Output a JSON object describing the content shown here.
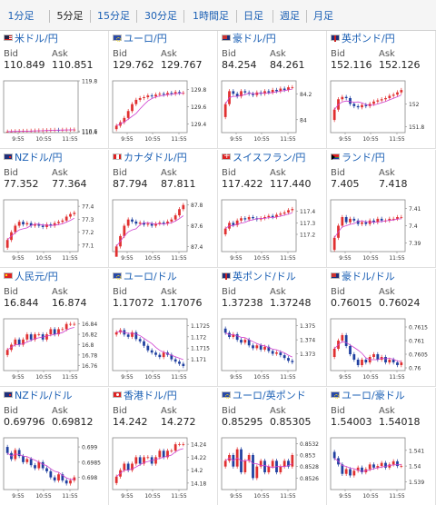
{
  "tabs": [
    {
      "label": "1分足",
      "name": "tab-1min"
    },
    {
      "label": "5分足",
      "name": "tab-5min",
      "selected": true
    },
    {
      "label": "15分足",
      "name": "tab-15min"
    },
    {
      "label": "30分足",
      "name": "tab-30min"
    },
    {
      "label": "1時間足",
      "name": "tab-1hour"
    },
    {
      "label": "日足",
      "name": "tab-daily"
    },
    {
      "label": "週足",
      "name": "tab-weekly"
    },
    {
      "label": "月足",
      "name": "tab-monthly"
    }
  ],
  "labels": {
    "bid": "Bid",
    "ask": "Ask"
  },
  "x_ticks": [
    "9:55",
    "10:55",
    "11:55"
  ],
  "colors": {
    "up": "#e03030",
    "down": "#2040a0",
    "ma": "#d040d0",
    "link": "#1a5fb4"
  },
  "cards": [
    {
      "title": "米ドル/円",
      "flag": "us",
      "bid": "110.849",
      "ask": "110.851",
      "chart_data": {
        "type": "candlestick",
        "ylim": [
          110.3,
          119.8
        ],
        "yticks": [
          "119.8",
          "110.6",
          "110.4"
        ],
        "close": [
          110.48,
          110.52,
          110.55,
          110.58,
          110.6,
          110.62,
          110.64,
          110.66,
          110.7,
          110.72,
          110.74,
          110.77,
          110.8,
          110.79,
          110.81,
          110.83,
          110.84,
          110.85
        ]
      }
    },
    {
      "title": "ユーロ/円",
      "flag": "eu",
      "bid": "129.762",
      "ask": "129.767",
      "chart_data": {
        "type": "candlestick",
        "ylim": [
          129.3,
          129.9
        ],
        "yticks": [
          "129.8",
          "129.6",
          "129.4"
        ],
        "close": [
          129.38,
          129.42,
          129.47,
          129.55,
          129.63,
          129.68,
          129.7,
          129.71,
          129.73,
          129.72,
          129.74,
          129.75,
          129.74,
          129.76,
          129.75,
          129.77,
          129.76,
          129.76
        ]
      }
    },
    {
      "title": "豪ドル/円",
      "flag": "au",
      "bid": "84.254",
      "ask": "84.261",
      "chart_data": {
        "type": "candlestick",
        "ylim": [
          83.9,
          84.3
        ],
        "yticks": [
          "84.2",
          "84"
        ],
        "close": [
          84.12,
          84.22,
          84.2,
          84.18,
          84.22,
          84.21,
          84.2,
          84.19,
          84.21,
          84.2,
          84.22,
          84.21,
          84.23,
          84.22,
          84.24,
          84.23,
          84.25,
          84.25
        ]
      }
    },
    {
      "title": "英ポンド/円",
      "flag": "gb",
      "bid": "152.116",
      "ask": "152.126",
      "chart_data": {
        "type": "candlestick",
        "ylim": [
          151.75,
          152.2
        ],
        "yticks": [
          "152",
          "151.8"
        ],
        "close": [
          151.95,
          152.04,
          152.06,
          152.05,
          152.0,
          151.98,
          151.97,
          151.99,
          151.98,
          152.0,
          152.02,
          152.03,
          152.04,
          152.05,
          152.07,
          152.08,
          152.1,
          152.12
        ]
      }
    },
    {
      "title": "NZドル/円",
      "flag": "nz",
      "bid": "77.352",
      "ask": "77.364",
      "chart_data": {
        "type": "candlestick",
        "ylim": [
          77.05,
          77.45
        ],
        "yticks": [
          "77.4",
          "77.3",
          "77.2",
          "77.1"
        ],
        "close": [
          77.14,
          77.2,
          77.25,
          77.28,
          77.26,
          77.27,
          77.25,
          77.26,
          77.25,
          77.24,
          77.26,
          77.25,
          77.27,
          77.28,
          77.29,
          77.32,
          77.34,
          77.35
        ]
      }
    },
    {
      "title": "カナダドル/円",
      "flag": "ca",
      "bid": "87.794",
      "ask": "87.811",
      "chart_data": {
        "type": "candlestick",
        "ylim": [
          87.35,
          87.85
        ],
        "yticks": [
          "87.8",
          "87.6",
          "87.4"
        ],
        "close": [
          87.4,
          87.5,
          87.6,
          87.66,
          87.64,
          87.62,
          87.63,
          87.61,
          87.62,
          87.6,
          87.62,
          87.63,
          87.62,
          87.64,
          87.66,
          87.7,
          87.76,
          87.8
        ]
      }
    },
    {
      "title": "スイスフラン/円",
      "flag": "ch",
      "bid": "117.422",
      "ask": "117.440",
      "chart_data": {
        "type": "candlestick",
        "ylim": [
          117.05,
          117.5
        ],
        "yticks": [
          "117.4",
          "117.3",
          "117.2"
        ],
        "close": [
          117.25,
          117.3,
          117.28,
          117.32,
          117.34,
          117.33,
          117.35,
          117.34,
          117.33,
          117.34,
          117.35,
          117.36,
          117.35,
          117.37,
          117.38,
          117.39,
          117.41,
          117.42
        ]
      }
    },
    {
      "title": "ランド/円",
      "flag": "za",
      "bid": "7.405",
      "ask": "7.418",
      "chart_data": {
        "type": "candlestick",
        "ylim": [
          7.385,
          7.415
        ],
        "yticks": [
          "7.41",
          "7.4",
          "7.39"
        ],
        "close": [
          7.393,
          7.4,
          7.405,
          7.402,
          7.404,
          7.403,
          7.401,
          7.402,
          7.401,
          7.403,
          7.402,
          7.404,
          7.403,
          7.403,
          7.404,
          7.404,
          7.405,
          7.405
        ]
      }
    },
    {
      "title": "人民元/円",
      "flag": "cn",
      "bid": "16.844",
      "ask": "16.874",
      "chart_data": {
        "type": "candlestick",
        "ylim": [
          16.75,
          16.85
        ],
        "yticks": [
          "16.84",
          "16.82",
          "16.8",
          "16.78",
          "16.76"
        ],
        "close": [
          16.79,
          16.8,
          16.81,
          16.8,
          16.81,
          16.82,
          16.81,
          16.82,
          16.82,
          16.81,
          16.82,
          16.83,
          16.82,
          16.83,
          16.83,
          16.84,
          16.84,
          16.84
        ]
      }
    },
    {
      "title": "ユーロ/ドル",
      "flag": "eu",
      "bid": "1.17072",
      "ask": "1.17076",
      "chart_data": {
        "type": "candlestick",
        "ylim": [
          1.1705,
          1.1728
        ],
        "yticks": [
          "1.1725",
          "1.172",
          "1.1715",
          "1.171"
        ],
        "close": [
          1.1722,
          1.1723,
          1.1721,
          1.172,
          1.1722,
          1.1719,
          1.1718,
          1.1716,
          1.1714,
          1.1713,
          1.1712,
          1.1711,
          1.1713,
          1.1712,
          1.171,
          1.1709,
          1.1708,
          1.1707
        ]
      }
    },
    {
      "title": "英ポンド/ドル",
      "flag": "gb",
      "bid": "1.37238",
      "ask": "1.37248",
      "chart_data": {
        "type": "candlestick",
        "ylim": [
          1.3718,
          1.3755
        ],
        "yticks": [
          "1.375",
          "1.374",
          "1.373"
        ],
        "close": [
          1.3745,
          1.3742,
          1.3744,
          1.374,
          1.3738,
          1.374,
          1.3736,
          1.3734,
          1.3736,
          1.3733,
          1.3735,
          1.3732,
          1.373,
          1.3731,
          1.3729,
          1.3727,
          1.3725,
          1.3724
        ]
      }
    },
    {
      "title": "豪ドル/ドル",
      "flag": "au",
      "bid": "0.76015",
      "ask": "0.76024",
      "chart_data": {
        "type": "candlestick",
        "ylim": [
          0.7599,
          0.7618
        ],
        "yticks": [
          "0.7615",
          "0.761",
          "0.7605",
          "0.76"
        ],
        "close": [
          0.7607,
          0.761,
          0.7612,
          0.7608,
          0.7605,
          0.7603,
          0.7601,
          0.7603,
          0.7602,
          0.7604,
          0.7605,
          0.7603,
          0.7604,
          0.7602,
          0.7603,
          0.7602,
          0.7601,
          0.7602
        ]
      }
    },
    {
      "title": "NZドル/ドル",
      "flag": "nz",
      "bid": "0.69796",
      "ask": "0.69812",
      "chart_data": {
        "type": "candlestick",
        "ylim": [
          0.6976,
          0.6993
        ],
        "yticks": [
          "0.699",
          "0.6985",
          "0.698"
        ],
        "close": [
          0.6988,
          0.6986,
          0.6989,
          0.6987,
          0.6985,
          0.6986,
          0.6984,
          0.6983,
          0.6985,
          0.6983,
          0.6982,
          0.698,
          0.6979,
          0.6981,
          0.6979,
          0.6978,
          0.6979,
          0.698
        ]
      }
    },
    {
      "title": "香港ドル/円",
      "flag": "hk",
      "bid": "14.242",
      "ask": "14.272",
      "chart_data": {
        "type": "candlestick",
        "ylim": [
          14.17,
          14.25
        ],
        "yticks": [
          "14.24",
          "14.22",
          "14.2",
          "14.18"
        ],
        "close": [
          14.19,
          14.2,
          14.21,
          14.2,
          14.21,
          14.22,
          14.21,
          14.22,
          14.22,
          14.21,
          14.22,
          14.23,
          14.22,
          14.23,
          14.23,
          14.24,
          14.24,
          14.24
        ]
      }
    },
    {
      "title": "ユーロ/英ポンド",
      "flag": "eu",
      "bid": "0.85295",
      "ask": "0.85305",
      "chart_data": {
        "type": "candlestick",
        "ylim": [
          0.8524,
          0.8533
        ],
        "yticks": [
          "0.8532",
          "0.853",
          "0.8528",
          "0.8526"
        ],
        "close": [
          0.8529,
          0.853,
          0.8528,
          0.8531,
          0.8527,
          0.8529,
          0.853,
          0.8526,
          0.8528,
          0.8529,
          0.8527,
          0.8528,
          0.8529,
          0.8527,
          0.8528,
          0.8529,
          0.8528,
          0.853
        ]
      }
    },
    {
      "title": "ユーロ/豪ドル",
      "flag": "eu",
      "bid": "1.54003",
      "ask": "1.54018",
      "chart_data": {
        "type": "candlestick",
        "ylim": [
          1.5385,
          1.5418
        ],
        "yticks": [
          "1.541",
          "1.54",
          "1.539"
        ],
        "close": [
          1.5405,
          1.5401,
          1.5395,
          1.5398,
          1.5394,
          1.5397,
          1.5399,
          1.5396,
          1.5398,
          1.5401,
          1.5399,
          1.54,
          1.5402,
          1.5399,
          1.5401,
          1.5403,
          1.54,
          1.54
        ]
      }
    }
  ]
}
